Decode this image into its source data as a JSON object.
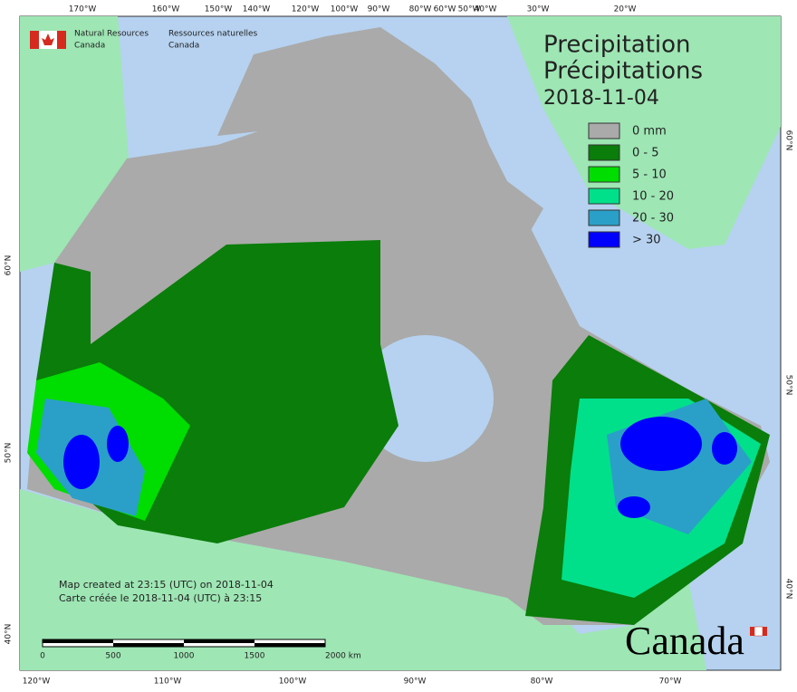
{
  "header": {
    "agency_en": "Natural Resources",
    "country_en": "Canada",
    "agency_fr": "Ressources naturelles",
    "country_fr": "Canada"
  },
  "title": {
    "line1": "Precipitation",
    "line2": "Précipitations",
    "date": "2018-11-04"
  },
  "legend": [
    {
      "label": "0 mm",
      "color": "#aaaaaa"
    },
    {
      "label": "0 - 5",
      "color": "#0a7d0a"
    },
    {
      "label": "5 - 10",
      "color": "#00dd00"
    },
    {
      "label": "10 - 20",
      "color": "#00e08a"
    },
    {
      "label": "20 - 30",
      "color": "#2aa0c8"
    },
    {
      "label": "> 30",
      "color": "#0000ff"
    }
  ],
  "graticule": {
    "top": [
      "170°W",
      "160°W",
      "150°W",
      "140°W",
      "120°W",
      "100°W",
      "90°W",
      "80°W",
      "60°W",
      "50°W",
      "40°W",
      "30°W",
      "20°W"
    ],
    "bottom": [
      "120°W",
      "110°W",
      "100°W",
      "90°W",
      "80°W",
      "70°W"
    ],
    "left": [
      "60°N",
      "50°N",
      "40°N"
    ],
    "right": [
      "60°N",
      "50°N",
      "40°N"
    ]
  },
  "notes": {
    "en": "Map created at 23:15 (UTC) on 2018-11-04",
    "fr": "Carte créée le 2018-11-04 (UTC) à 23:15"
  },
  "scale_bar": [
    "0",
    "500",
    "1000",
    "1500",
    "2000  km"
  ],
  "wordmark": "Canada"
}
